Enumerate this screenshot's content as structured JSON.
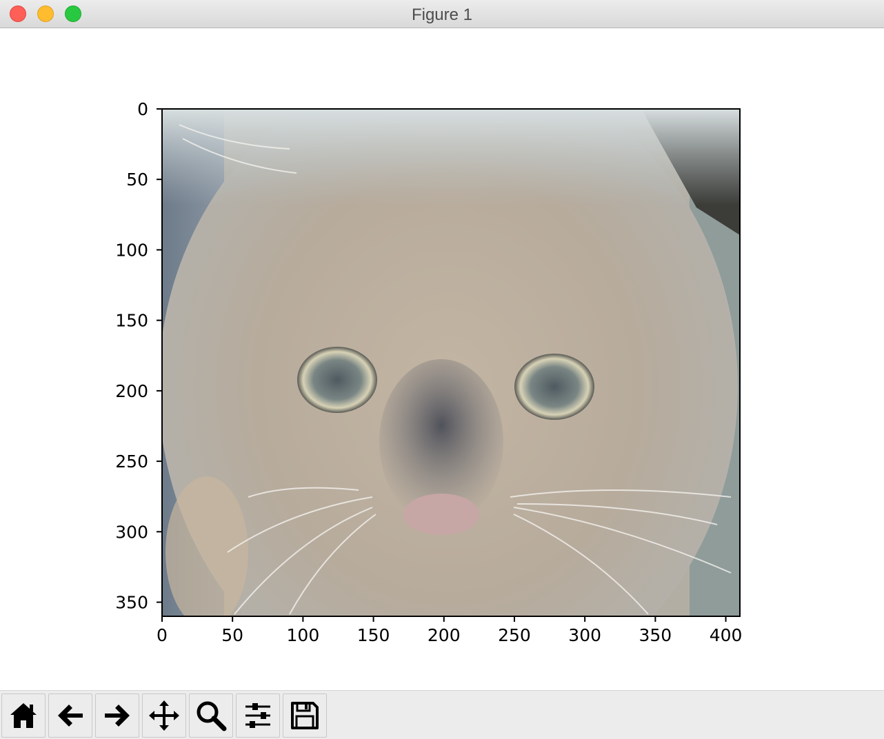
{
  "window": {
    "title": "Figure 1"
  },
  "chart_data": {
    "type": "image",
    "xlim": [
      0,
      410
    ],
    "ylim": [
      360,
      0
    ],
    "x_ticks": [
      0,
      50,
      100,
      150,
      200,
      250,
      300,
      350,
      400
    ],
    "y_ticks": [
      0,
      50,
      100,
      150,
      200,
      250,
      300,
      350
    ],
    "x_tick_labels": [
      "0",
      "50",
      "100",
      "150",
      "200",
      "250",
      "300",
      "350",
      "400"
    ],
    "y_tick_labels": [
      "0",
      "50",
      "100",
      "150",
      "200",
      "250",
      "300",
      "350"
    ]
  },
  "toolbar": {
    "buttons": [
      "home-icon",
      "back-arrow-icon",
      "forward-arrow-icon",
      "pan-icon",
      "zoom-icon",
      "configure-subplots-icon",
      "save-icon"
    ]
  }
}
